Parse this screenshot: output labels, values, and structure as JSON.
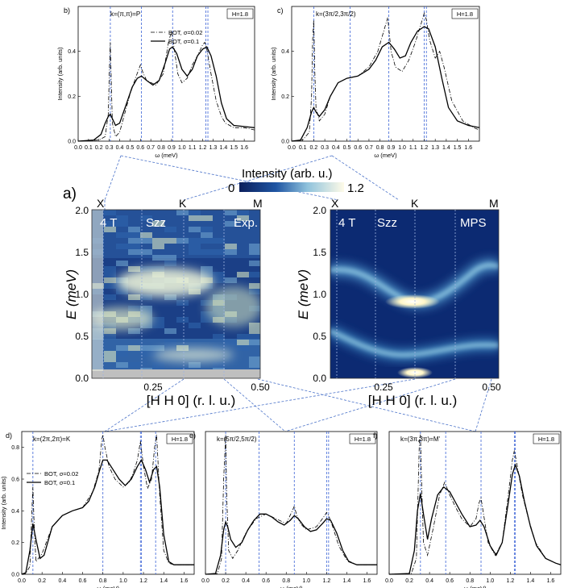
{
  "figure": {
    "panel_a_label": "a)",
    "colorbar": {
      "label": "Intensity (arb. u.)",
      "min_label": "0",
      "max_label": "1.2"
    }
  },
  "chart_data": [
    {
      "panel": "b)",
      "type": "line",
      "kpoint": "k=(π,π)=P",
      "field": "H=1.8",
      "xlabel": "ω (meV)",
      "ylabel": "Intensity (arb. units)",
      "xlim": [
        0,
        1.7
      ],
      "ylim": [
        0,
        0.6
      ],
      "xticks": [
        "0.0",
        "0.1",
        "0.2",
        "0.3",
        "0.4",
        "0.5",
        "0.6",
        "0.7",
        "0.8",
        "0.9",
        "1.0",
        "1.1",
        "1.2",
        "1.3",
        "1.4",
        "1.5",
        "1.6"
      ],
      "yticks": [
        "0.0",
        "0.2",
        "0.4"
      ],
      "vlines": [
        0.31,
        0.61,
        0.91,
        1.23,
        1.25
      ],
      "legend": [
        "BOT, σ=0.02",
        "BOT, σ=0.1"
      ],
      "series": [
        {
          "name": "BOT, σ=0.02",
          "style": "dashdot",
          "x": [
            0,
            0.2,
            0.26,
            0.29,
            0.3,
            0.31,
            0.32,
            0.33,
            0.36,
            0.4,
            0.5,
            0.56,
            0.6,
            0.62,
            0.66,
            0.75,
            0.82,
            0.87,
            0.9,
            0.92,
            0.96,
            1.0,
            1.05,
            1.1,
            1.15,
            1.2,
            1.22,
            1.24,
            1.28,
            1.33,
            1.38,
            1.42,
            1.5,
            1.6,
            1.7
          ],
          "y": [
            0,
            0.005,
            0.02,
            0.12,
            0.3,
            0.44,
            0.25,
            0.08,
            0.02,
            0.04,
            0.21,
            0.29,
            0.34,
            0.31,
            0.27,
            0.25,
            0.3,
            0.44,
            0.49,
            0.43,
            0.3,
            0.26,
            0.28,
            0.34,
            0.38,
            0.43,
            0.44,
            0.41,
            0.3,
            0.18,
            0.11,
            0.08,
            0.06,
            0.06,
            0.05
          ]
        },
        {
          "name": "BOT, σ=0.1",
          "style": "solid",
          "x": [
            0,
            0.15,
            0.22,
            0.26,
            0.29,
            0.31,
            0.33,
            0.36,
            0.4,
            0.46,
            0.52,
            0.57,
            0.61,
            0.66,
            0.72,
            0.78,
            0.84,
            0.88,
            0.91,
            0.95,
            1.0,
            1.05,
            1.1,
            1.15,
            1.2,
            1.24,
            1.28,
            1.33,
            1.38,
            1.43,
            1.5,
            1.6,
            1.7
          ],
          "y": [
            0,
            0.005,
            0.03,
            0.08,
            0.11,
            0.12,
            0.1,
            0.07,
            0.08,
            0.16,
            0.24,
            0.28,
            0.29,
            0.27,
            0.25,
            0.27,
            0.35,
            0.41,
            0.42,
            0.39,
            0.32,
            0.29,
            0.32,
            0.38,
            0.41,
            0.42,
            0.38,
            0.29,
            0.17,
            0.1,
            0.07,
            0.065,
            0.06
          ]
        }
      ]
    },
    {
      "panel": "c)",
      "type": "line",
      "kpoint": "k=(3π/2,3π/2)",
      "field": "H=1.8",
      "xlabel": "ω (meV)",
      "ylabel": "Intensity (arb. units)",
      "xlim": [
        0,
        1.7
      ],
      "ylim": [
        0,
        0.6
      ],
      "xticks": [
        "0.0",
        "0.1",
        "0.2",
        "0.3",
        "0.4",
        "0.5",
        "0.6",
        "0.7",
        "0.8",
        "0.9",
        "1.0",
        "1.1",
        "1.2",
        "1.3",
        "1.4",
        "1.5",
        "1.6"
      ],
      "yticks": [
        "0.0",
        "0.2",
        "0.4"
      ],
      "vlines": [
        0.2,
        0.53,
        0.88,
        1.2,
        1.22
      ],
      "legend": [],
      "series": [
        {
          "name": "BOT, σ=0.02",
          "style": "dashdot",
          "x": [
            0,
            0.1,
            0.16,
            0.18,
            0.19,
            0.2,
            0.21,
            0.22,
            0.25,
            0.3,
            0.35,
            0.42,
            0.5,
            0.6,
            0.7,
            0.78,
            0.84,
            0.87,
            0.88,
            0.9,
            0.94,
            1.0,
            1.06,
            1.12,
            1.17,
            1.2,
            1.22,
            1.25,
            1.3,
            1.34,
            1.38,
            1.45,
            1.55,
            1.65,
            1.7
          ],
          "y": [
            0,
            0.005,
            0.04,
            0.2,
            0.45,
            0.54,
            0.3,
            0.15,
            0.09,
            0.12,
            0.2,
            0.26,
            0.28,
            0.29,
            0.33,
            0.4,
            0.5,
            0.55,
            0.5,
            0.4,
            0.33,
            0.31,
            0.36,
            0.44,
            0.52,
            0.57,
            0.54,
            0.45,
            0.37,
            0.4,
            0.33,
            0.18,
            0.09,
            0.06,
            0.05
          ]
        },
        {
          "name": "BOT, σ=0.1",
          "style": "solid",
          "x": [
            0,
            0.08,
            0.14,
            0.18,
            0.2,
            0.22,
            0.25,
            0.3,
            0.35,
            0.42,
            0.5,
            0.6,
            0.7,
            0.76,
            0.82,
            0.88,
            0.93,
            0.98,
            1.03,
            1.08,
            1.14,
            1.2,
            1.24,
            1.3,
            1.36,
            1.42,
            1.5,
            1.6,
            1.7
          ],
          "y": [
            0,
            0.005,
            0.06,
            0.13,
            0.15,
            0.13,
            0.11,
            0.14,
            0.2,
            0.26,
            0.28,
            0.29,
            0.32,
            0.36,
            0.42,
            0.44,
            0.41,
            0.37,
            0.38,
            0.44,
            0.49,
            0.51,
            0.5,
            0.42,
            0.28,
            0.15,
            0.09,
            0.07,
            0.06
          ]
        }
      ]
    },
    {
      "panel": "a) left",
      "type": "heatmap",
      "annotations": [
        "4 T",
        "Szz",
        "Exp."
      ],
      "top_labels": [
        "X",
        "K",
        "M"
      ],
      "xlabel": "[H H 0] (r. l. u.)",
      "ylabel": "E (meV)",
      "xlim": [
        0.125,
        0.5
      ],
      "ylim": [
        0,
        2.0
      ],
      "xticks": [
        "0.25",
        "0.50"
      ],
      "yticks": [
        "0.0",
        "0.5",
        "1.0",
        "1.5",
        "2.0"
      ]
    },
    {
      "panel": "a) right",
      "type": "heatmap",
      "annotations": [
        "4 T",
        "Szz",
        "MPS"
      ],
      "top_labels": [
        "X",
        "K",
        "M"
      ],
      "xlabel": "[H H 0] (r. l. u.)",
      "ylabel": "E (meV)",
      "xlim": [
        0.125,
        0.5
      ],
      "ylim": [
        0,
        2.0
      ],
      "xticks": [
        "0.25",
        "0.50"
      ],
      "yticks": [
        "0.0",
        "0.5",
        "1.0",
        "1.5",
        "2.0"
      ]
    },
    {
      "panel": "d)",
      "type": "line",
      "kpoint": "k=(2π,2π)=K",
      "field": "H=1.8",
      "xlabel": "ω (meV)",
      "ylabel": "Intensity (arb. units)",
      "xlim": [
        0,
        1.7
      ],
      "ylim": [
        0,
        0.9
      ],
      "xticks": [
        "0.0",
        "0.2",
        "0.4",
        "0.6",
        "0.8",
        "1.0",
        "1.2",
        "1.4",
        "1.6"
      ],
      "yticks": [
        "0.0",
        "0.2",
        "0.4",
        "0.6",
        "0.8"
      ],
      "vlines": [
        0.11,
        0.8,
        1.17,
        1.18,
        1.32
      ],
      "legend": [
        "BOT, σ=0.02",
        "BOT, σ=0.1"
      ],
      "series": [
        {
          "name": "BOT, σ=0.02",
          "style": "dashdot",
          "x": [
            0,
            0.04,
            0.08,
            0.1,
            0.11,
            0.12,
            0.14,
            0.2,
            0.3,
            0.4,
            0.5,
            0.6,
            0.7,
            0.76,
            0.79,
            0.8,
            0.82,
            0.86,
            0.92,
            1.0,
            1.06,
            1.1,
            1.14,
            1.17,
            1.2,
            1.24,
            1.28,
            1.31,
            1.33,
            1.36,
            1.4,
            1.45,
            1.5,
            1.6,
            1.7
          ],
          "y": [
            0,
            0.005,
            0.05,
            0.4,
            0.55,
            0.35,
            0.08,
            0.13,
            0.3,
            0.37,
            0.4,
            0.42,
            0.52,
            0.65,
            0.85,
            0.88,
            0.8,
            0.68,
            0.6,
            0.55,
            0.58,
            0.64,
            0.72,
            0.84,
            0.68,
            0.54,
            0.6,
            0.8,
            0.88,
            0.5,
            0.15,
            0.07,
            0.06,
            0.06,
            0.06
          ]
        },
        {
          "name": "BOT, σ=0.1",
          "style": "solid",
          "x": [
            0,
            0.04,
            0.08,
            0.11,
            0.14,
            0.18,
            0.22,
            0.3,
            0.4,
            0.5,
            0.6,
            0.66,
            0.72,
            0.77,
            0.8,
            0.84,
            0.9,
            0.96,
            1.02,
            1.08,
            1.14,
            1.18,
            1.22,
            1.26,
            1.3,
            1.33,
            1.36,
            1.4,
            1.45,
            1.5,
            1.6,
            1.7
          ],
          "y": [
            0,
            0.01,
            0.15,
            0.32,
            0.22,
            0.1,
            0.12,
            0.3,
            0.37,
            0.4,
            0.42,
            0.46,
            0.55,
            0.66,
            0.72,
            0.72,
            0.66,
            0.6,
            0.56,
            0.6,
            0.68,
            0.72,
            0.66,
            0.58,
            0.66,
            0.68,
            0.55,
            0.25,
            0.08,
            0.06,
            0.06,
            0.06
          ]
        }
      ]
    },
    {
      "panel": "e)",
      "type": "line",
      "kpoint": "k=(5π/2,5π/2)",
      "field": "H=1.8",
      "xlabel": "ω (meV)",
      "ylabel": "",
      "xlim": [
        0,
        1.7
      ],
      "ylim": [
        0,
        0.9
      ],
      "xticks": [
        "0.0",
        "0.2",
        "0.4",
        "0.6",
        "0.8",
        "1.0",
        "1.2",
        "1.4",
        "1.6"
      ],
      "yticks": [],
      "vlines": [
        0.2,
        0.53,
        0.88,
        1.2,
        1.22
      ],
      "legend": [],
      "series": [
        {
          "name": "BOT, σ=0.02",
          "style": "dashdot",
          "x": [
            0,
            0.12,
            0.16,
            0.18,
            0.2,
            0.21,
            0.23,
            0.27,
            0.32,
            0.4,
            0.5,
            0.6,
            0.7,
            0.8,
            0.86,
            0.88,
            0.9,
            0.94,
            1.0,
            1.1,
            1.17,
            1.2,
            1.22,
            1.26,
            1.32,
            1.4,
            1.5,
            1.6,
            1.7
          ],
          "y": [
            0,
            0.005,
            0.1,
            0.6,
            0.88,
            0.5,
            0.15,
            0.1,
            0.15,
            0.26,
            0.35,
            0.38,
            0.35,
            0.32,
            0.4,
            0.43,
            0.38,
            0.32,
            0.28,
            0.3,
            0.36,
            0.39,
            0.37,
            0.3,
            0.18,
            0.09,
            0.06,
            0.06,
            0.06
          ]
        },
        {
          "name": "BOT, σ=0.1",
          "style": "solid",
          "x": [
            0,
            0.1,
            0.15,
            0.18,
            0.2,
            0.22,
            0.25,
            0.3,
            0.36,
            0.42,
            0.48,
            0.54,
            0.6,
            0.66,
            0.72,
            0.78,
            0.84,
            0.88,
            0.92,
            0.98,
            1.04,
            1.1,
            1.16,
            1.2,
            1.24,
            1.3,
            1.36,
            1.42,
            1.5,
            1.6,
            1.7
          ],
          "y": [
            0,
            0.005,
            0.12,
            0.28,
            0.33,
            0.3,
            0.22,
            0.17,
            0.2,
            0.28,
            0.34,
            0.38,
            0.38,
            0.36,
            0.33,
            0.31,
            0.34,
            0.37,
            0.35,
            0.3,
            0.27,
            0.28,
            0.32,
            0.35,
            0.34,
            0.26,
            0.15,
            0.08,
            0.06,
            0.06,
            0.06
          ]
        }
      ]
    },
    {
      "panel": "f)",
      "type": "line",
      "kpoint": "k=(3π,3π)=M'",
      "field": "H=1.8",
      "xlabel": "ω (meV)",
      "ylabel": "",
      "xlim": [
        0,
        1.7
      ],
      "ylim": [
        0,
        0.9
      ],
      "xticks": [
        "0.0",
        "0.2",
        "0.4",
        "0.6",
        "0.8",
        "1.0",
        "1.2",
        "1.4",
        "1.6"
      ],
      "yticks": [],
      "vlines": [
        0.31,
        0.56,
        0.91,
        1.24,
        1.25
      ],
      "legend": [],
      "series": [
        {
          "name": "BOT, σ=0.02",
          "style": "dashdot",
          "x": [
            0,
            0.22,
            0.27,
            0.29,
            0.3,
            0.31,
            0.32,
            0.34,
            0.38,
            0.44,
            0.5,
            0.55,
            0.6,
            0.66,
            0.72,
            0.8,
            0.86,
            0.89,
            0.91,
            0.93,
            0.98,
            1.05,
            1.12,
            1.18,
            1.22,
            1.24,
            1.27,
            1.32,
            1.38,
            1.45,
            1.55,
            1.65,
            1.7
          ],
          "y": [
            0,
            0.005,
            0.1,
            0.6,
            0.86,
            0.88,
            0.6,
            0.2,
            0.12,
            0.3,
            0.5,
            0.58,
            0.5,
            0.42,
            0.35,
            0.3,
            0.35,
            0.45,
            0.48,
            0.4,
            0.2,
            0.12,
            0.2,
            0.5,
            0.72,
            0.78,
            0.68,
            0.5,
            0.35,
            0.2,
            0.1,
            0.07,
            0.06
          ]
        },
        {
          "name": "BOT, σ=0.1",
          "style": "solid",
          "x": [
            0,
            0.2,
            0.25,
            0.28,
            0.31,
            0.34,
            0.38,
            0.42,
            0.48,
            0.54,
            0.6,
            0.66,
            0.72,
            0.8,
            0.86,
            0.9,
            0.94,
            1.0,
            1.06,
            1.12,
            1.18,
            1.22,
            1.25,
            1.29,
            1.34,
            1.4,
            1.46,
            1.55,
            1.65,
            1.7
          ],
          "y": [
            0,
            0.005,
            0.15,
            0.4,
            0.51,
            0.38,
            0.22,
            0.35,
            0.5,
            0.55,
            0.52,
            0.45,
            0.38,
            0.3,
            0.31,
            0.34,
            0.3,
            0.18,
            0.12,
            0.2,
            0.45,
            0.63,
            0.69,
            0.62,
            0.46,
            0.3,
            0.18,
            0.1,
            0.07,
            0.06
          ]
        }
      ]
    }
  ]
}
